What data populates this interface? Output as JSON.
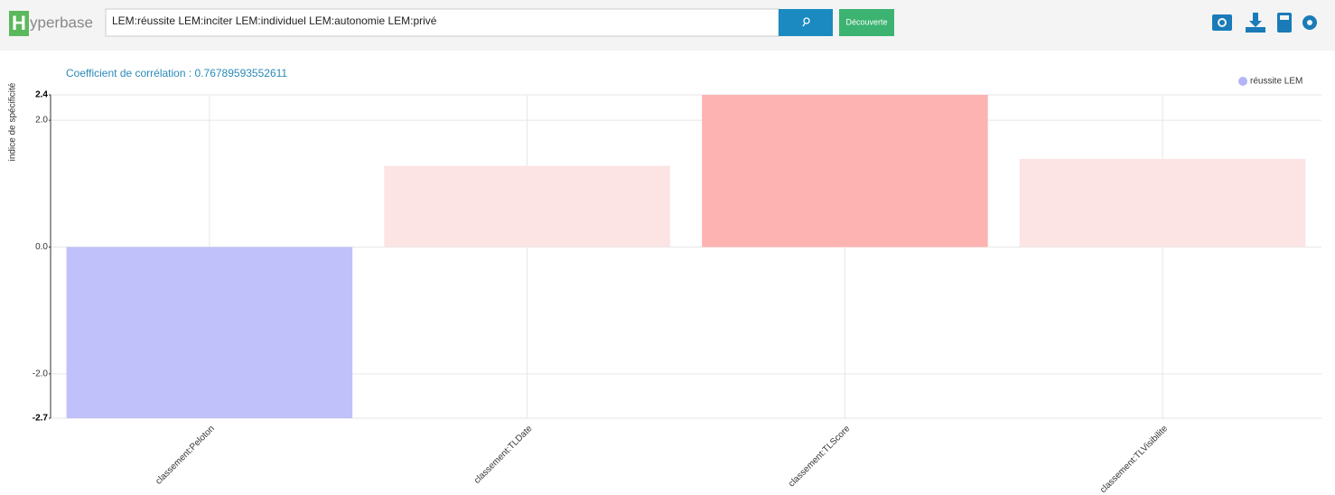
{
  "header": {
    "logo_letter": "H",
    "logo_text": "yperbase",
    "query": "LEM:réussite LEM:inciter LEM:individuel LEM:autonomie LEM:privé",
    "discover_button": "Découverte"
  },
  "chart_data": {
    "type": "bar",
    "subtitle": "Coefficient de corrélation : 0.76789593552611",
    "y_label": "indice de spécificité",
    "categories": [
      "classement:Peloton",
      "classement:TLDate",
      "classement:TLScore",
      "classement:TLVisibilite"
    ],
    "series": [
      {
        "name": "réussite LEM",
        "color": "#b4b4f6",
        "values": [
          -2.7,
          1.28,
          2.4,
          1.39
        ]
      }
    ],
    "colors": [
      "#c0c0fb",
      "#fce4e4",
      "#feb3b3",
      "#fce4e4"
    ],
    "ylim": [
      -2.7,
      2.4
    ],
    "yticks": [
      2.4,
      {
        "value": 2,
        "label": "2.0"
      },
      {
        "value": 0,
        "label": "0.0"
      },
      {
        "value": -2,
        "label": "-2.0"
      },
      -2.7
    ],
    "grid": true,
    "legend": "top-right"
  }
}
